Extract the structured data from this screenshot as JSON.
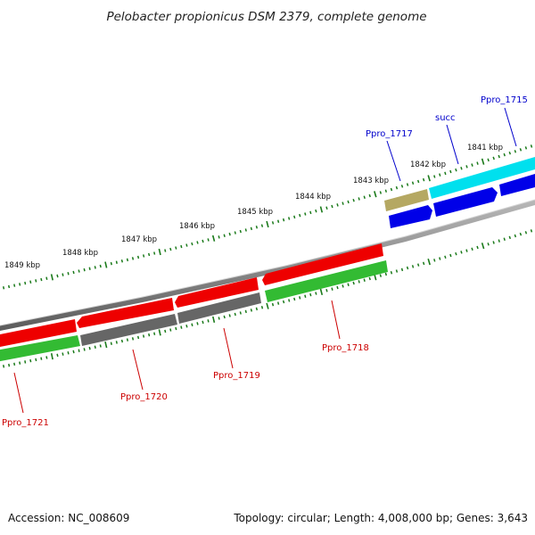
{
  "title": "Pelobacter propionicus DSM 2379, complete genome",
  "footer": {
    "accession": "Accession: NC_008609",
    "topology": "Topology: circular; Length: 4,008,000 bp; Genes: 3,643"
  },
  "colors": {
    "forward_label": "#0000cc",
    "reverse_label": "#cc0000",
    "ticks": "#1a7a1a",
    "backbone": "#8a8a8a"
  },
  "scale_ticks": [
    "1849 kbp",
    "1848 kbp",
    "1847 kbp",
    "1846 kbp",
    "1845 kbp",
    "1844 kbp",
    "1843 kbp",
    "1842 kbp",
    "1841 kbp"
  ],
  "genes_forward": [
    {
      "name": "",
      "color": "#b5a862",
      "track": "outer"
    },
    {
      "name": "",
      "color": "#00e0ee",
      "track": "outer"
    },
    {
      "name": "",
      "color": "#0000e8",
      "track": "outer"
    },
    {
      "name": "",
      "color": "#0000e8",
      "track": "inner"
    },
    {
      "name": "",
      "color": "#0000e8",
      "track": "inner"
    }
  ],
  "genes_reverse": [
    {
      "name": "",
      "color": "#ee0000",
      "track": "inner"
    },
    {
      "name": "",
      "color": "#ee0000",
      "track": "inner"
    },
    {
      "name": "",
      "color": "#ee0000",
      "track": "inner"
    },
    {
      "name": "",
      "color": "#ee0000",
      "track": "inner"
    },
    {
      "name": "",
      "color": "#33bb33",
      "track": "outer"
    },
    {
      "name": "",
      "color": "#33bb33",
      "track": "outer"
    },
    {
      "name": "",
      "color": "#666666",
      "track": "outer"
    },
    {
      "name": "",
      "color": "#666666",
      "track": "outer"
    }
  ],
  "gene_labels": [
    {
      "text": "Ppro_1717",
      "strand": "forward"
    },
    {
      "text": "succ",
      "strand": "forward"
    },
    {
      "text": "Ppro_1715",
      "strand": "forward"
    },
    {
      "text": "Ppro_1718",
      "strand": "reverse"
    },
    {
      "text": "Ppro_1719",
      "strand": "reverse"
    },
    {
      "text": "Ppro_1720",
      "strand": "reverse"
    },
    {
      "text": "Ppro_1721",
      "strand": "reverse"
    }
  ]
}
